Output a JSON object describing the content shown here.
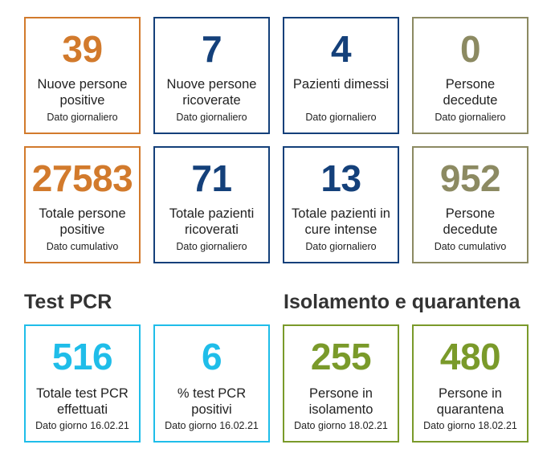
{
  "daily": [
    {
      "value": "39",
      "label": "Nuove persone positive",
      "sub": "Dato giornaliero"
    },
    {
      "value": "7",
      "label": "Nuove persone ricoverate",
      "sub": "Dato giornaliero"
    },
    {
      "value": "4",
      "label": "Pazienti dimessi",
      "sub": "Dato giornaliero"
    },
    {
      "value": "0",
      "label": "Persone decedute",
      "sub": "Dato giornaliero"
    }
  ],
  "totals": [
    {
      "value": "27583",
      "label": "Totale persone positive",
      "sub": "Dato cumulativo"
    },
    {
      "value": "71",
      "label": "Totale pazienti ricoverati",
      "sub": "Dato giornaliero"
    },
    {
      "value": "13",
      "label": "Totale pazienti in cure intense",
      "sub": "Dato giornaliero"
    },
    {
      "value": "952",
      "label": "Persone decedute",
      "sub": "Dato cumulativo"
    }
  ],
  "pcr": {
    "title": "Test PCR",
    "cards": [
      {
        "value": "516",
        "label": "Totale test PCR effettuati",
        "sub": "Dato giorno 16.02.21"
      },
      {
        "value": "6",
        "label": "% test PCR positivi",
        "sub": "Dato giorno 16.02.21"
      }
    ]
  },
  "isolation": {
    "title": "Isolamento e quarantena",
    "cards": [
      {
        "value": "255",
        "label": "Persone in isolamento",
        "sub": "Dato giorno 18.02.21"
      },
      {
        "value": "480",
        "label": "Persone in quarantena",
        "sub": "Dato giorno 18.02.21"
      }
    ]
  },
  "colors": {
    "orange": "#d27a2c",
    "navy": "#14407a",
    "olive": "#8c8a62",
    "cyan": "#1fbde9",
    "green": "#7a9a2a"
  }
}
